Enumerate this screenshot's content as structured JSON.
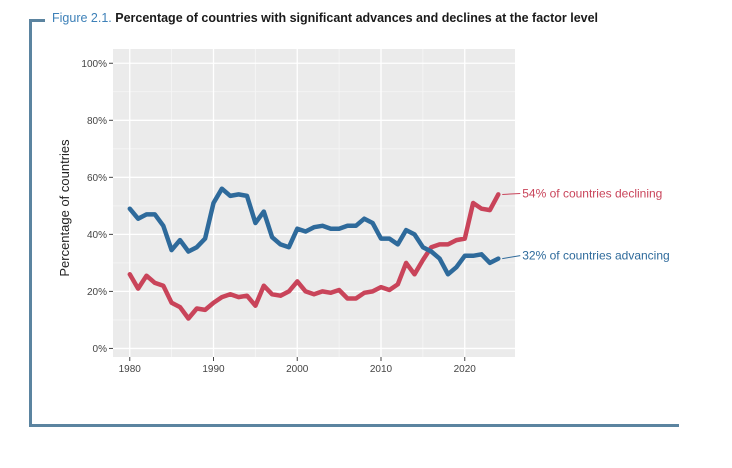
{
  "figure": {
    "label": "Figure 2.1.",
    "title": "Percentage of countries with significant advances and declines at the factor level"
  },
  "chart_data": {
    "type": "line",
    "ylabel": "Percentage of countries",
    "xlabel": "",
    "xlim": [
      1978,
      2026
    ],
    "ylim": [
      -3,
      105
    ],
    "xticks": [
      1980,
      1990,
      2000,
      2010,
      2020
    ],
    "xtick_labels": [
      "1980",
      "1990",
      "2000",
      "2010",
      "2020"
    ],
    "yticks": [
      0,
      20,
      40,
      60,
      80,
      100
    ],
    "ytick_labels": [
      "0%",
      "20%",
      "40%",
      "60%",
      "80%",
      "100%"
    ],
    "grid": true,
    "x": [
      1980,
      1981,
      1982,
      1983,
      1984,
      1985,
      1986,
      1987,
      1988,
      1989,
      1990,
      1991,
      1992,
      1993,
      1994,
      1995,
      1996,
      1997,
      1998,
      1999,
      2000,
      2001,
      2002,
      2003,
      2004,
      2005,
      2006,
      2007,
      2008,
      2009,
      2010,
      2011,
      2012,
      2013,
      2014,
      2015,
      2016,
      2017,
      2018,
      2019,
      2020,
      2021,
      2022,
      2023,
      2024
    ],
    "series": [
      {
        "name": "declining",
        "color": "#c9445a",
        "annotation": "54% of countries declining",
        "values": [
          26,
          21,
          25.5,
          23,
          22,
          16,
          14.5,
          10.5,
          14,
          13.5,
          16,
          18,
          19,
          18,
          18.5,
          15,
          22,
          19,
          18.5,
          20,
          23.5,
          20,
          19,
          20,
          19.5,
          20.5,
          17.5,
          17.5,
          19.5,
          20,
          21.5,
          20.5,
          22.5,
          30,
          26,
          31,
          35.5,
          36.5,
          36.5,
          38,
          38.5,
          51,
          49,
          48.5,
          54
        ]
      },
      {
        "name": "advancing",
        "color": "#2e6a9b",
        "annotation": "32% of countries advancing",
        "values": [
          49,
          45.5,
          47,
          47,
          43,
          34.5,
          38,
          34,
          35.5,
          38.5,
          51,
          56,
          53.5,
          54,
          53.5,
          44,
          48,
          39,
          36.5,
          35.5,
          42,
          41,
          42.5,
          43,
          42,
          42,
          43,
          43,
          45.5,
          44,
          38.5,
          38.5,
          36.5,
          41.5,
          40,
          35.5,
          34,
          31.5,
          26,
          28.5,
          32.5,
          32.5,
          33,
          30,
          31.5
        ]
      }
    ]
  }
}
